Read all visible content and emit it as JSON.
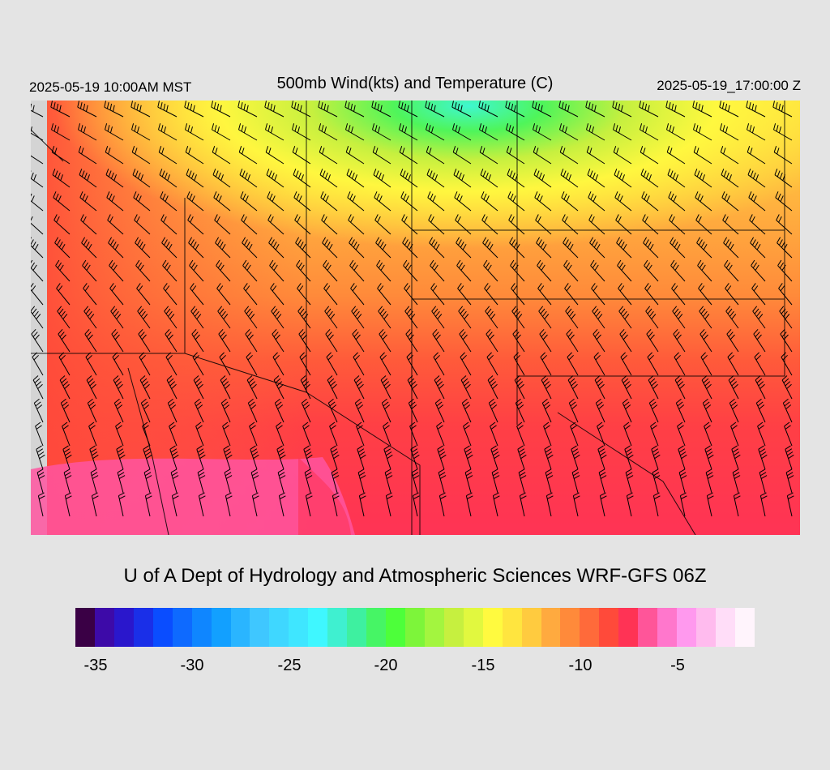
{
  "header": {
    "local_time": "2025-05-19 10:00AM MST",
    "title": "500mb Wind(kts) and Temperature (C)",
    "valid_time": "2025-05-19_17:00:00 Z"
  },
  "footer": {
    "credit": "U of A Dept of Hydrology and Atmospheric Sciences WRF-GFS 06Z"
  },
  "colorbar": {
    "colors": [
      "#3a0045",
      "#3d0aa8",
      "#2a17cc",
      "#1a2fe8",
      "#0a4dff",
      "#0e6aff",
      "#0f86ff",
      "#12a0ff",
      "#2ab5ff",
      "#3fc7ff",
      "#3fd7ff",
      "#3fe6ff",
      "#3ff7ff",
      "#3ff0d0",
      "#3ef0a0",
      "#46f565",
      "#4dff3a",
      "#7df53a",
      "#a3f53f",
      "#c6f03f",
      "#e1f83f",
      "#fffa3f",
      "#ffe53f",
      "#ffcb3f",
      "#ffaa3f",
      "#ff8a3a",
      "#ff6a3a",
      "#ff4a3a",
      "#ff3355",
      "#ff5599",
      "#ff77cc",
      "#ff99ee",
      "#ffbbee",
      "#ffddf8",
      "#fff4fc"
    ],
    "ticks": [
      "-35",
      "-30",
      "-25",
      "-20",
      "-15",
      "-10",
      "-5"
    ]
  }
}
